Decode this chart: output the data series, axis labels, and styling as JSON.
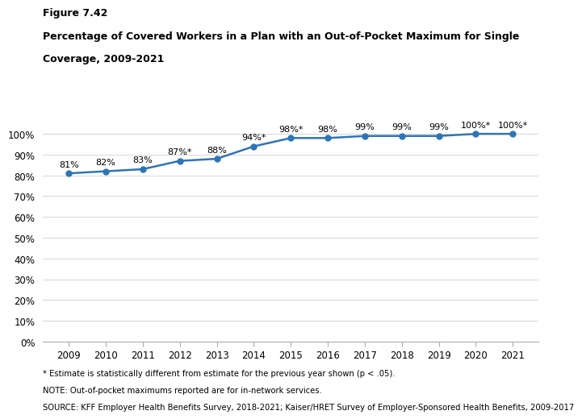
{
  "years": [
    2009,
    2010,
    2011,
    2012,
    2013,
    2014,
    2015,
    2016,
    2017,
    2018,
    2019,
    2020,
    2021
  ],
  "values": [
    81,
    82,
    83,
    87,
    88,
    94,
    98,
    98,
    99,
    99,
    99,
    100,
    100
  ],
  "labels": [
    "81%",
    "82%",
    "83%",
    "87%*",
    "88%",
    "94%*",
    "98%*",
    "98%",
    "99%",
    "99%",
    "99%",
    "100%*",
    "100%*"
  ],
  "line_color": "#2E75B6",
  "title_line1": "Figure 7.42",
  "title_line2": "Percentage of Covered Workers in a Plan with an Out-of-Pocket Maximum for Single",
  "title_line3": "Coverage, 2009-2021",
  "ylim": [
    0,
    110
  ],
  "yticks": [
    0,
    10,
    20,
    30,
    40,
    50,
    60,
    70,
    80,
    90,
    100
  ],
  "ytick_labels": [
    "0%",
    "10%",
    "20%",
    "30%",
    "40%",
    "50%",
    "60%",
    "70%",
    "80%",
    "90%",
    "100%"
  ],
  "footnote1": "* Estimate is statistically different from estimate for the previous year shown (p < .05).",
  "footnote2": "NOTE: Out-of-pocket maximums reported are for in-network services.",
  "footnote3": "SOURCE: KFF Employer Health Benefits Survey, 2018-2021; Kaiser/HRET Survey of Employer-Sponsored Health Benefits, 2009-2017",
  "bg_color": "#ffffff"
}
